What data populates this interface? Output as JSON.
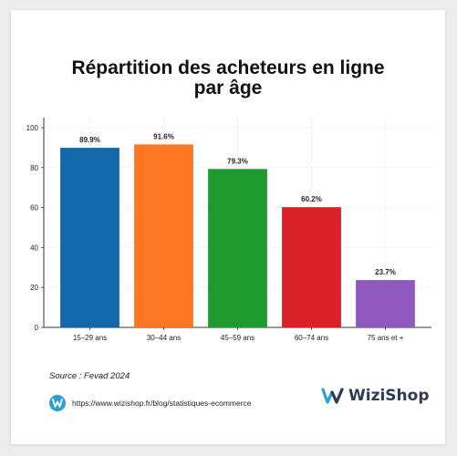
{
  "chart_data": {
    "type": "bar",
    "title_lines": [
      "Répartition des acheteurs en ligne",
      "par âge"
    ],
    "categories": [
      "15–29 ans",
      "30–44 ans",
      "45–59 ans",
      "60–74 ans",
      "75 ans et +"
    ],
    "values": [
      89.9,
      91.6,
      79.3,
      60.2,
      23.7
    ],
    "value_labels": [
      "89.9%",
      "91.6%",
      "79.3%",
      "60.2%",
      "23.7%"
    ],
    "colors": [
      "#1368ac",
      "#ff7722",
      "#1e9a2f",
      "#d92128",
      "#9059bd"
    ],
    "ylim": [
      0,
      105
    ],
    "yticks": [
      0,
      20,
      40,
      60,
      80,
      100
    ],
    "grid": true,
    "legend": "none"
  },
  "footer": {
    "source": "Source : Fevad 2024",
    "url": "https://www.wizishop.fr/blog/statistiques-ecommerce",
    "brand": "WiziShop",
    "brand_color": "#2f3a56",
    "icon_color": "#2b9fd6"
  }
}
